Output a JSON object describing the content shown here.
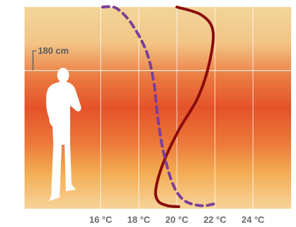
{
  "chart_data": {
    "type": "line",
    "xlabel": "",
    "ylabel": "",
    "x_ticks": [
      "16 °C",
      "18 °C",
      "20 °C",
      "22 °C",
      "24 °C"
    ],
    "x_tick_values": [
      16,
      18,
      20,
      22,
      24
    ],
    "xlim": [
      12,
      26
    ],
    "ylim": [
      0,
      100
    ],
    "grid": true,
    "legend": "none",
    "height_marker": {
      "label": "180 cm",
      "position": 68.5
    },
    "background_gradient": {
      "top_color": "#F3D59A",
      "middle_color": "#E8552A",
      "bottom_color": "#F7CC8A"
    },
    "series": [
      {
        "style": "solid",
        "color": "#8A0C0C",
        "points": [
          {
            "x": 20.0,
            "y": 100
          },
          {
            "x": 21.3,
            "y": 96
          },
          {
            "x": 21.9,
            "y": 88
          },
          {
            "x": 21.7,
            "y": 72
          },
          {
            "x": 21.1,
            "y": 55
          },
          {
            "x": 20.1,
            "y": 39
          },
          {
            "x": 19.3,
            "y": 23
          },
          {
            "x": 18.9,
            "y": 10
          },
          {
            "x": 19.0,
            "y": 4
          },
          {
            "x": 19.5,
            "y": 1.5
          },
          {
            "x": 20.1,
            "y": 1.0
          }
        ]
      },
      {
        "style": "dashed",
        "color": "#7B3F9A",
        "points": [
          {
            "x": 16.1,
            "y": 100
          },
          {
            "x": 16.8,
            "y": 99.5
          },
          {
            "x": 17.6,
            "y": 92
          },
          {
            "x": 18.4,
            "y": 78
          },
          {
            "x": 18.8,
            "y": 62
          },
          {
            "x": 19.0,
            "y": 45
          },
          {
            "x": 19.3,
            "y": 28
          },
          {
            "x": 19.8,
            "y": 12
          },
          {
            "x": 20.4,
            "y": 4
          },
          {
            "x": 21.3,
            "y": 1.5
          },
          {
            "x": 22.0,
            "y": 2.5
          }
        ]
      }
    ]
  }
}
